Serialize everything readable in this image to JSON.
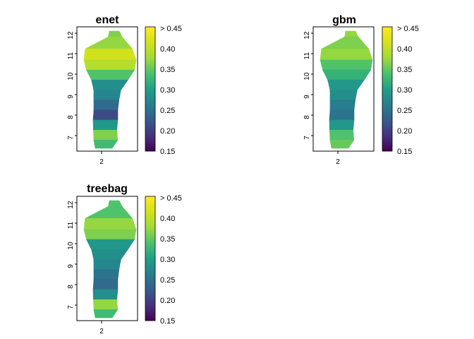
{
  "chart_data": [
    {
      "type": "heatmap",
      "title": "enet",
      "x_ticks": [
        "2"
      ],
      "y_ticks": [
        "7",
        "8",
        "9",
        "10",
        "11",
        "12"
      ],
      "ylim": [
        6.2,
        12.4
      ],
      "colorbar": {
        "min": 0.15,
        "max": 0.45,
        "ticks": [
          "0.15",
          "0.20",
          "0.25",
          "0.30",
          "0.35",
          "0.40",
          "> 0.45"
        ]
      },
      "rows": [
        {
          "lat": 12.2,
          "value": 0.36
        },
        {
          "lat": 11.6,
          "value": 0.37
        },
        {
          "lat": 11.0,
          "value": 0.41
        },
        {
          "lat": 10.5,
          "value": 0.39
        },
        {
          "lat": 10.0,
          "value": 0.34
        },
        {
          "lat": 9.5,
          "value": 0.28
        },
        {
          "lat": 9.0,
          "value": 0.27
        },
        {
          "lat": 8.5,
          "value": 0.24
        },
        {
          "lat": 8.0,
          "value": 0.21
        },
        {
          "lat": 7.5,
          "value": 0.29
        },
        {
          "lat": 7.0,
          "value": 0.36
        },
        {
          "lat": 6.5,
          "value": 0.33
        }
      ]
    },
    {
      "type": "heatmap",
      "title": "gbm",
      "x_ticks": [
        "2"
      ],
      "y_ticks": [
        "7",
        "8",
        "9",
        "10",
        "11",
        "12"
      ],
      "ylim": [
        6.2,
        12.4
      ],
      "colorbar": {
        "min": 0.15,
        "max": 0.45,
        "ticks": [
          "0.15",
          "0.20",
          "0.25",
          "0.30",
          "0.35",
          "0.40",
          "> 0.45"
        ]
      },
      "rows": [
        {
          "lat": 12.2,
          "value": 0.37
        },
        {
          "lat": 11.6,
          "value": 0.36
        },
        {
          "lat": 11.0,
          "value": 0.37
        },
        {
          "lat": 10.5,
          "value": 0.34
        },
        {
          "lat": 10.0,
          "value": 0.32
        },
        {
          "lat": 9.5,
          "value": 0.29
        },
        {
          "lat": 9.0,
          "value": 0.28
        },
        {
          "lat": 8.5,
          "value": 0.26
        },
        {
          "lat": 8.0,
          "value": 0.25
        },
        {
          "lat": 7.5,
          "value": 0.29
        },
        {
          "lat": 7.0,
          "value": 0.34
        },
        {
          "lat": 6.5,
          "value": 0.35
        }
      ]
    },
    {
      "type": "heatmap",
      "title": "treebag",
      "x_ticks": [
        "2"
      ],
      "y_ticks": [
        "7",
        "8",
        "9",
        "10",
        "11",
        "12"
      ],
      "ylim": [
        6.2,
        12.4
      ],
      "colorbar": {
        "min": 0.15,
        "max": 0.45,
        "ticks": [
          "0.15",
          "0.20",
          "0.25",
          "0.30",
          "0.35",
          "0.40",
          "> 0.45"
        ]
      },
      "rows": [
        {
          "lat": 12.2,
          "value": 0.34
        },
        {
          "lat": 11.6,
          "value": 0.34
        },
        {
          "lat": 11.0,
          "value": 0.37
        },
        {
          "lat": 10.5,
          "value": 0.36
        },
        {
          "lat": 10.0,
          "value": 0.29
        },
        {
          "lat": 9.5,
          "value": 0.28
        },
        {
          "lat": 9.0,
          "value": 0.27
        },
        {
          "lat": 8.5,
          "value": 0.25
        },
        {
          "lat": 8.0,
          "value": 0.24
        },
        {
          "lat": 7.5,
          "value": 0.28
        },
        {
          "lat": 7.0,
          "value": 0.37
        },
        {
          "lat": 6.5,
          "value": 0.33
        }
      ]
    }
  ]
}
